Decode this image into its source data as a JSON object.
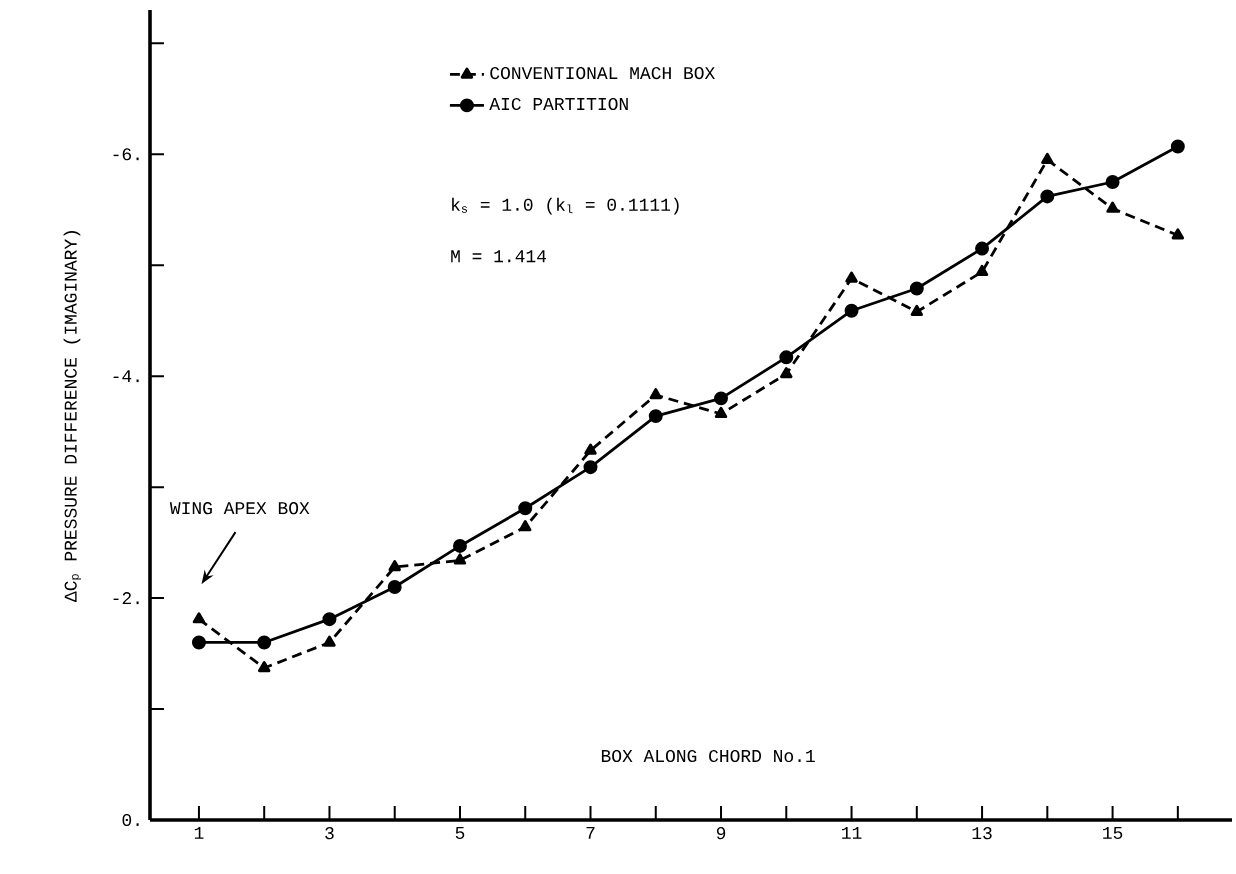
{
  "chart_data": {
    "type": "line",
    "ylabel": "ΔC$_{p}$  PRESSURE DIFFERENCE (IMAGINARY)",
    "x": [
      1,
      2,
      3,
      4,
      5,
      6,
      7,
      8,
      9,
      10,
      11,
      12,
      13,
      14,
      15,
      16
    ],
    "series": [
      {
        "name": "CONVENTIONAL MACH BOX",
        "color": "#000000",
        "marker": "triangle",
        "line_style": "dashed",
        "values": [
          -1.81,
          -1.37,
          -1.6,
          -2.28,
          -2.34,
          -2.64,
          -3.33,
          -3.83,
          -3.66,
          -4.02,
          -4.88,
          -4.58,
          -4.94,
          -5.95,
          -5.51,
          -5.27
        ]
      },
      {
        "name": "AIC PARTITION",
        "color": "#000000",
        "marker": "circle",
        "line_style": "solid",
        "values": [
          -1.6,
          -1.6,
          -1.81,
          -2.1,
          -2.47,
          -2.81,
          -3.18,
          -3.64,
          -3.8,
          -4.17,
          -4.59,
          -4.79,
          -5.15,
          -5.62,
          -5.75,
          -6.07
        ]
      }
    ],
    "xlim": [
      0.25,
      16.83
    ],
    "ylim": [
      0,
      -7.3
    ],
    "xticks": [
      1,
      {
        "value": 2,
        "label": null
      },
      3,
      {
        "value": 4,
        "label": null
      },
      5,
      {
        "value": 6,
        "label": null
      },
      7,
      {
        "value": 8,
        "label": null
      },
      9,
      {
        "value": 10,
        "label": null
      },
      11,
      {
        "value": 12,
        "label": null
      },
      13,
      {
        "value": 14,
        "label": null
      },
      15,
      {
        "value": 16,
        "label": null
      }
    ],
    "yticks": [
      {
        "value": 0,
        "label": "0."
      },
      {
        "value": -1,
        "label": null
      },
      {
        "value": -2,
        "label": "-2."
      },
      {
        "value": -3,
        "label": null
      },
      {
        "value": -4,
        "label": "-4."
      },
      {
        "value": -5,
        "label": null
      },
      {
        "value": -6,
        "label": "-6."
      },
      {
        "value": -7,
        "label": null
      }
    ],
    "annotations": [
      "WING APEX BOX",
      "k$_{s}$ = 1.0 (k$_{l}$ = 0.1111)",
      "M = 1.414",
      "BOX ALONG CHORD No.1"
    ],
    "legend": "top",
    "grid": false
  }
}
